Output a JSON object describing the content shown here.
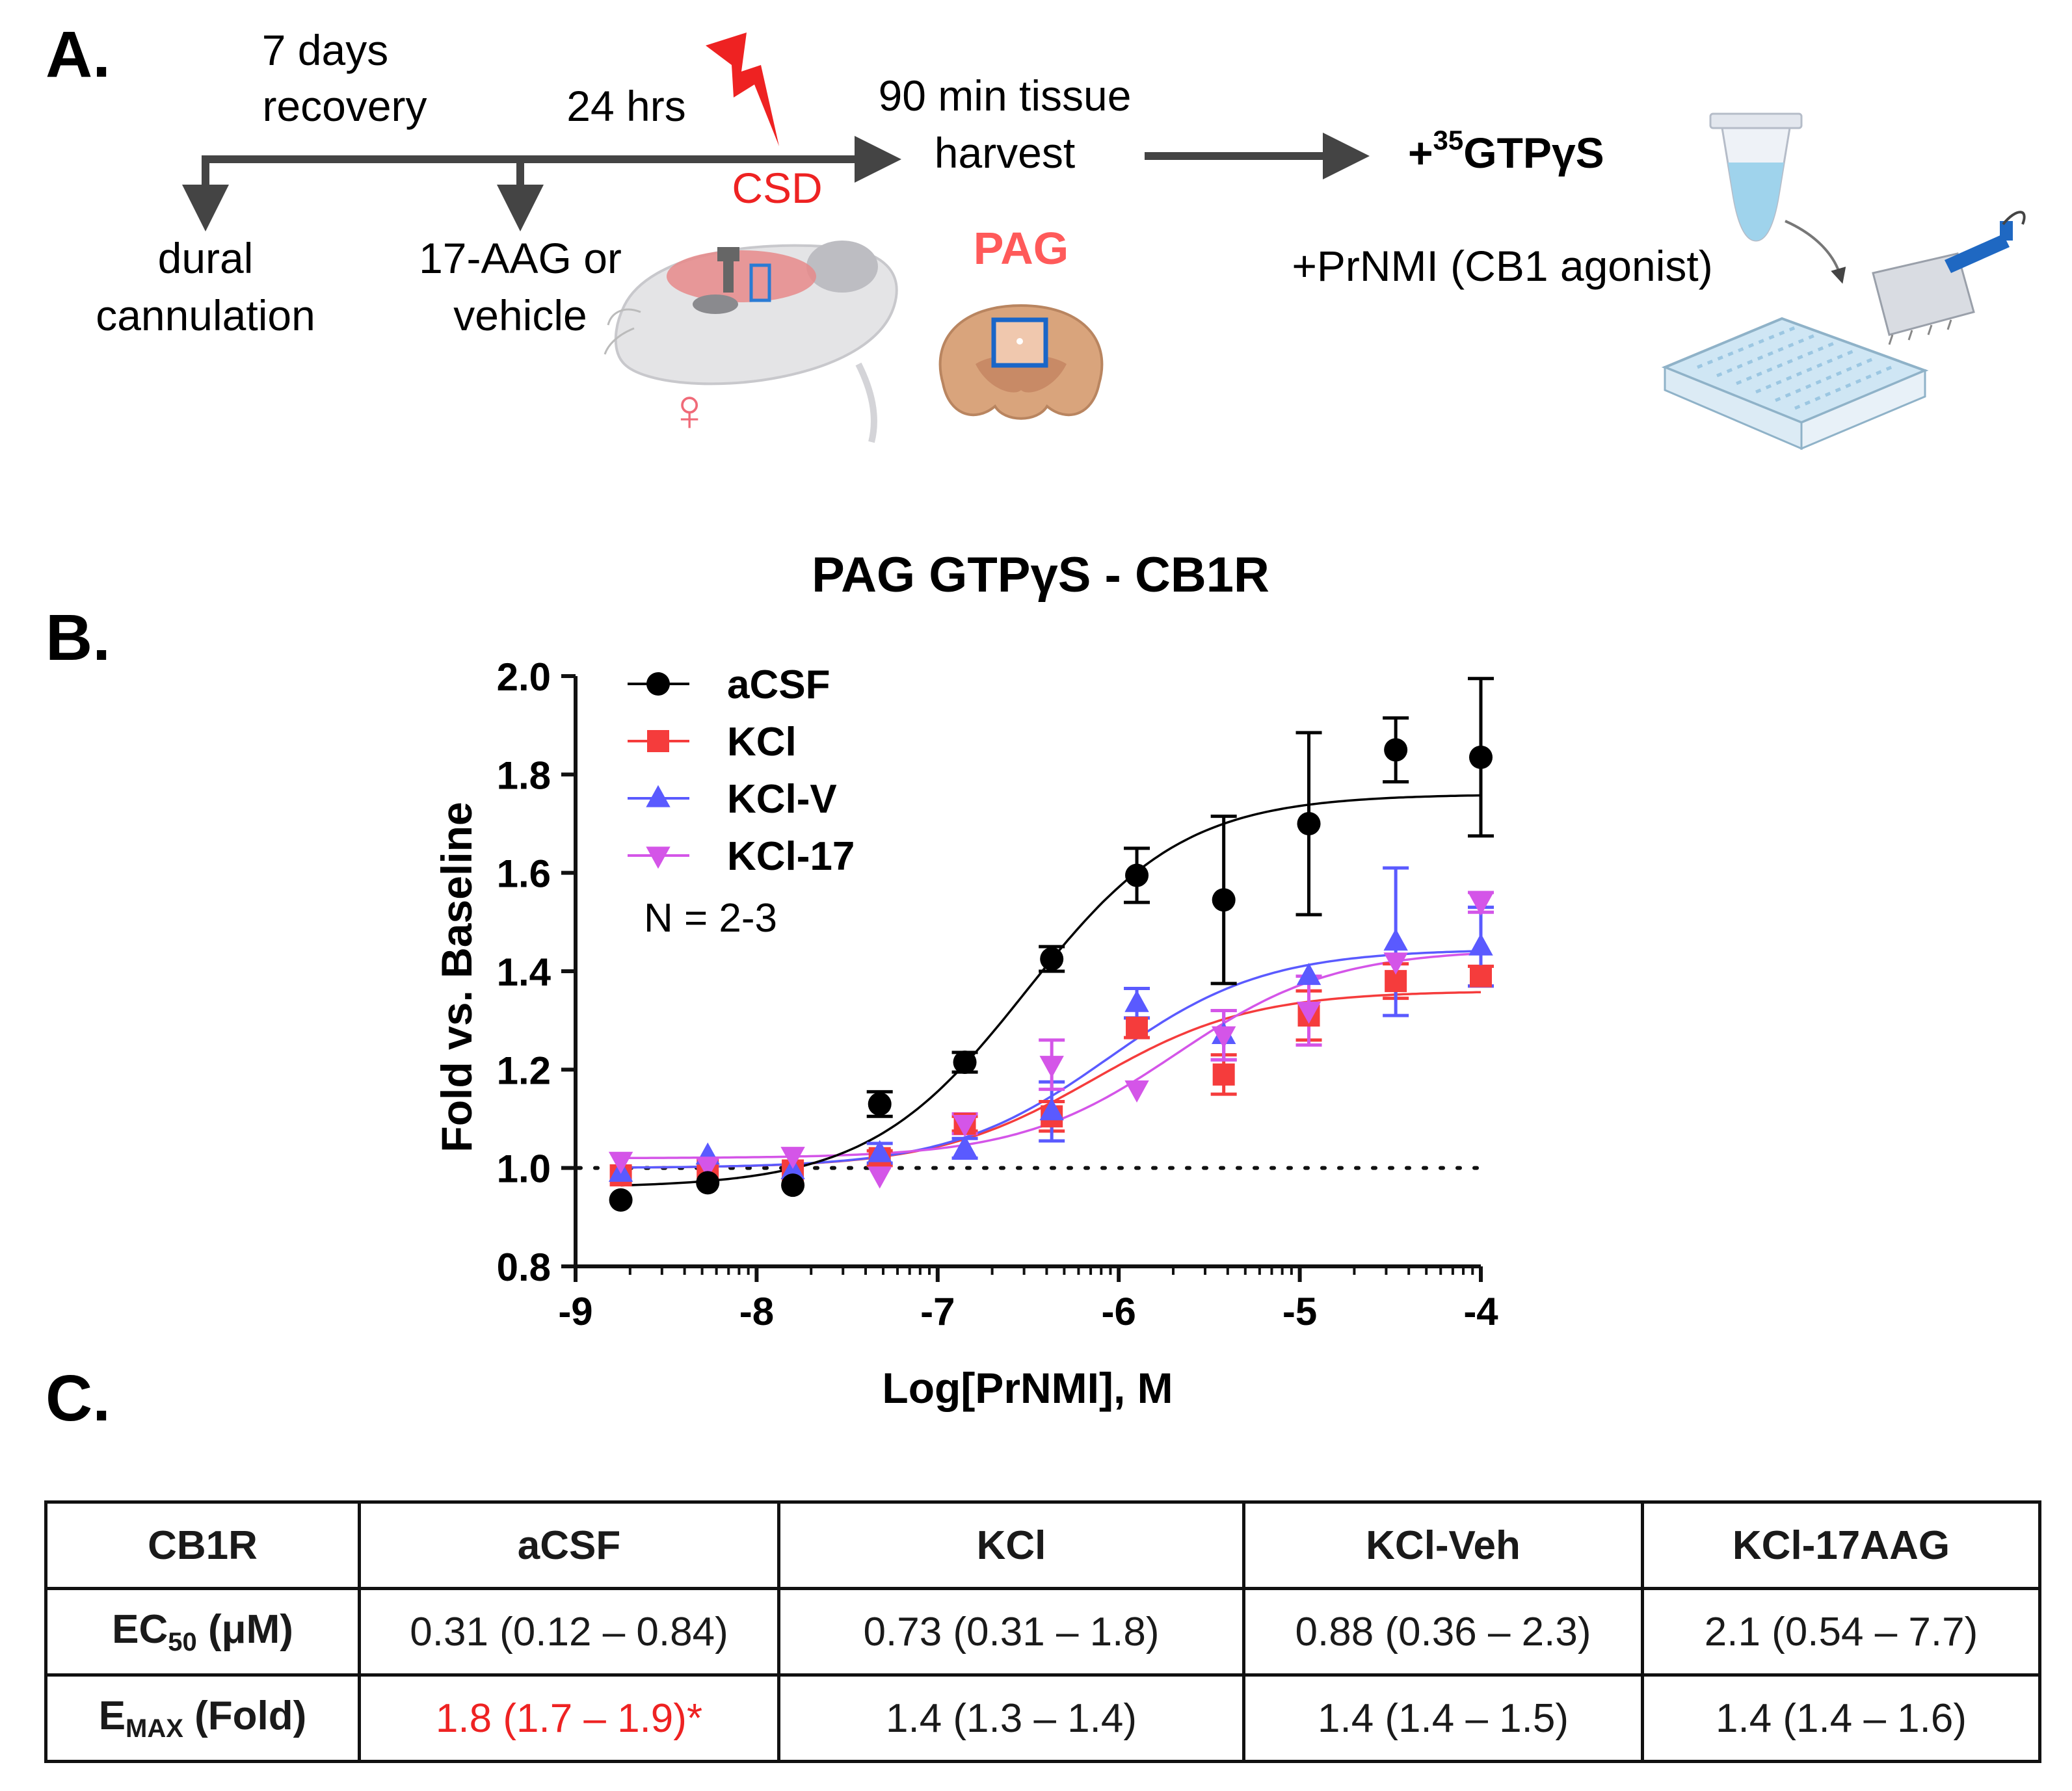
{
  "panel_a": {
    "label": "A.",
    "recovery_line1": "7 days",
    "recovery_line2": "recovery",
    "hrs": "24 hrs",
    "csd": "CSD",
    "harvest_line1": "90 min  tissue",
    "harvest_line2": "harvest",
    "gtps_prefix": "+",
    "gtps_sup": "35",
    "gtps_main": "GTPγS",
    "dural_line1": "dural",
    "dural_line2": "cannulation",
    "treat_line1": "17-AAG or",
    "treat_line2": "vehicle",
    "pag": "PAG",
    "agonist": "+PrNMI (CB1 agonist)",
    "female_symbol": "♀",
    "colors": {
      "red": "#ee2222",
      "pag": "#ff5a5a",
      "arrow": "#444444"
    }
  },
  "panel_b": {
    "label": "B."
  },
  "panel_c": {
    "label": "C."
  },
  "chart_data": {
    "type": "scatter",
    "title": "PAG GTPγS - CB1R",
    "xlabel": "Log[PrNMI], M",
    "ylabel": "Fold vs. Baseline",
    "xlim": [
      -9,
      -4
    ],
    "ylim": [
      0.8,
      2.0
    ],
    "xticks": [
      -9,
      -8,
      -7,
      -6,
      -5,
      -4
    ],
    "yticks": [
      0.8,
      1.0,
      1.2,
      1.4,
      1.6,
      1.8,
      2.0
    ],
    "xtick_labels": [
      "-9",
      "-8",
      "-7",
      "-6",
      "-5",
      "-4"
    ],
    "ytick_labels": [
      "0.8",
      "1.0",
      "1.2",
      "1.4",
      "1.6",
      "1.8",
      "2.0"
    ],
    "baseline": 1.0,
    "annotation": "N = 2-3",
    "x": [
      -8.75,
      -8.27,
      -7.8,
      -7.32,
      -6.85,
      -6.37,
      -5.9,
      -5.42,
      -4.95,
      -4.47,
      -4.0
    ],
    "series": [
      {
        "name": "aCSF",
        "color": "#000000",
        "marker": "circle",
        "values": [
          0.935,
          0.97,
          0.965,
          1.13,
          1.215,
          1.425,
          1.595,
          1.545,
          1.7,
          1.85,
          1.835
        ],
        "errors": [
          0.0,
          0.0,
          0.0,
          0.025,
          0.02,
          0.025,
          0.055,
          0.17,
          0.185,
          0.065,
          0.16
        ],
        "curve": {
          "bottom": 0.96,
          "top": 1.76,
          "logEC50": -6.51,
          "hill": 1.0
        }
      },
      {
        "name": "KCl",
        "color": "#f53c3c",
        "marker": "square",
        "values": [
          0.985,
          1.0,
          0.995,
          1.02,
          1.09,
          1.105,
          1.285,
          1.19,
          1.31,
          1.38,
          1.39
        ],
        "errors": [
          0.0,
          0.0,
          0.0,
          0.015,
          0.015,
          0.03,
          0.02,
          0.04,
          0.05,
          0.035,
          0.02
        ],
        "curve": {
          "bottom": 1.0,
          "top": 1.36,
          "logEC50": -6.14,
          "hill": 1.0
        }
      },
      {
        "name": "KCl-V",
        "color": "#5a5aff",
        "marker": "triangle-up",
        "values": [
          0.99,
          1.025,
          0.995,
          1.03,
          1.04,
          1.115,
          1.335,
          1.27,
          1.39,
          1.46,
          1.45
        ],
        "errors": [
          0.0,
          0.0,
          0.0,
          0.02,
          0.02,
          0.06,
          0.03,
          0.05,
          0.0,
          0.15,
          0.08
        ],
        "curve": {
          "bottom": 1.0,
          "top": 1.445,
          "logEC50": -6.06,
          "hill": 1.0
        }
      },
      {
        "name": "KCl-17",
        "color": "#d455e8",
        "marker": "triangle-down",
        "values": [
          1.015,
          1.005,
          1.025,
          0.985,
          1.09,
          1.21,
          1.16,
          1.27,
          1.32,
          1.42,
          1.54
        ],
        "errors": [
          0.0,
          0.0,
          0.0,
          0.0,
          0.02,
          0.05,
          0.0,
          0.05,
          0.07,
          0.0,
          0.02
        ],
        "curve": {
          "bottom": 1.02,
          "top": 1.445,
          "logEC50": -5.68,
          "hill": 1.0
        }
      }
    ]
  },
  "table": {
    "headers": [
      "CB1R",
      "aCSF",
      "KCl",
      "KCl-Veh",
      "KCl-17AAG"
    ],
    "ec50_label_main": "EC",
    "ec50_label_sub": "50",
    "ec50_label_rest": " (μM)",
    "emax_label_main": "E",
    "emax_label_sub": "MAX",
    "emax_label_rest": " (Fold)",
    "ec50": [
      "0.31 (0.12 – 0.84)",
      "0.73 (0.31 – 1.8)",
      "0.88 (0.36 – 2.3)",
      "2.1 (0.54 – 7.7)"
    ],
    "emax": [
      "1.8 (1.7 – 1.9)*",
      "1.4 (1.3 – 1.4)",
      "1.4 (1.4 – 1.5)",
      "1.4 (1.4 – 1.6)"
    ],
    "highlight_color": "#ee2222"
  }
}
